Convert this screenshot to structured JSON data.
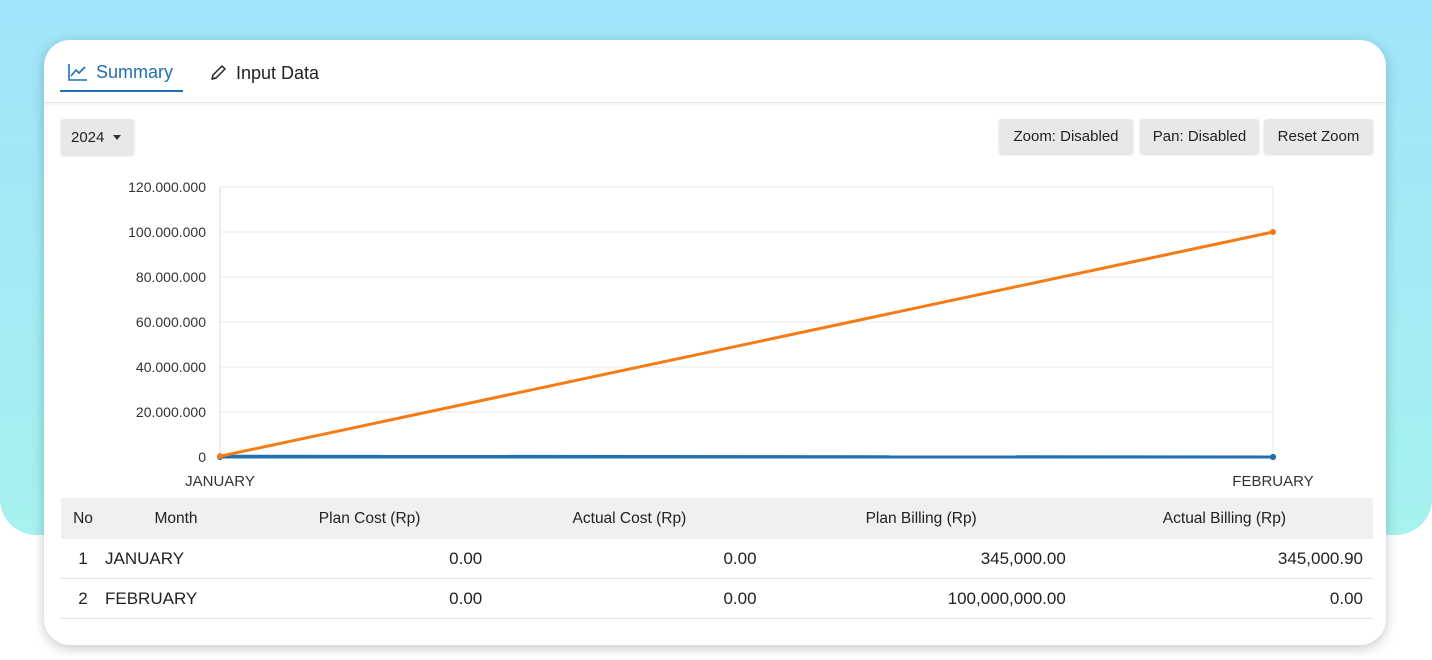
{
  "tabs": [
    {
      "label": "Summary",
      "icon": "line-chart-icon",
      "active": true
    },
    {
      "label": "Input Data",
      "icon": "pencil-icon",
      "active": false
    }
  ],
  "toolbar": {
    "year": "2024",
    "zoom_label": "Zoom: Disabled",
    "pan_label": "Pan: Disabled",
    "reset_label": "Reset Zoom"
  },
  "colors": {
    "accent": "#1f6fb2",
    "series_orange": "#f57c14",
    "series_blue": "#1f6fb2",
    "background_gradient_top": "#9fe4fb",
    "background_gradient_bottom": "#a6f2ee"
  },
  "chart_data": {
    "type": "line",
    "categories": [
      "JANUARY",
      "FEBRUARY"
    ],
    "y_tick_labels": [
      "0",
      "20.000.000",
      "40.000.000",
      "60.000.000",
      "80.000.000",
      "100.000.000",
      "120.000.000"
    ],
    "ylim": [
      0,
      120000000
    ],
    "grid": true,
    "series": [
      {
        "values": [
          345000,
          100000000
        ],
        "color": "#f57c14"
      },
      {
        "values": [
          345000.9,
          0
        ],
        "color": "#1f6fb2"
      },
      {
        "values": [
          0,
          0
        ],
        "color": "#1f6fb2"
      },
      {
        "values": [
          0,
          0
        ],
        "color": "#1f6fb2"
      }
    ]
  },
  "table": {
    "headers": [
      "No",
      "Month",
      "Plan Cost (Rp)",
      "Actual Cost (Rp)",
      "Plan Billing (Rp)",
      "Actual Billing (Rp)"
    ],
    "rows": [
      [
        "1",
        "JANUARY",
        "0.00",
        "0.00",
        "345,000.00",
        "345,000.90"
      ],
      [
        "2",
        "FEBRUARY",
        "0.00",
        "0.00",
        "100,000,000.00",
        "0.00"
      ]
    ]
  }
}
